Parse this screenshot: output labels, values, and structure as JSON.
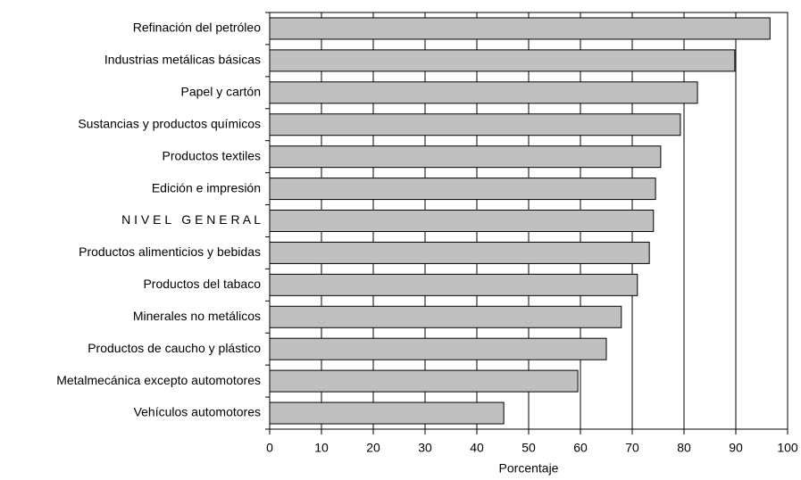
{
  "chart_data": {
    "type": "bar",
    "orientation": "horizontal",
    "categories": [
      "Refinación del petróleo",
      "Industrias metálicas básicas",
      "Papel y cartón",
      "Sustancias y productos químicos",
      "Productos textiles",
      "Edición e impresión",
      "N I V E L   G E N E R A L",
      "Productos alimenticios y bebidas",
      "Productos del tabaco",
      "Minerales no metálicos",
      "Productos de caucho y plástico",
      "Metalmecánica excepto automotores",
      "Vehículos automotores"
    ],
    "values": [
      96.6,
      89.8,
      82.6,
      79.3,
      75.5,
      74.5,
      74.1,
      73.3,
      71.0,
      67.9,
      65.0,
      59.5,
      45.2
    ],
    "color": "#c0c0c0",
    "xlabel": "Porcentaje",
    "xlim": [
      0,
      100
    ],
    "xticks": [
      0,
      10,
      20,
      30,
      40,
      50,
      60,
      70,
      80,
      90,
      100
    ],
    "grid": true
  }
}
